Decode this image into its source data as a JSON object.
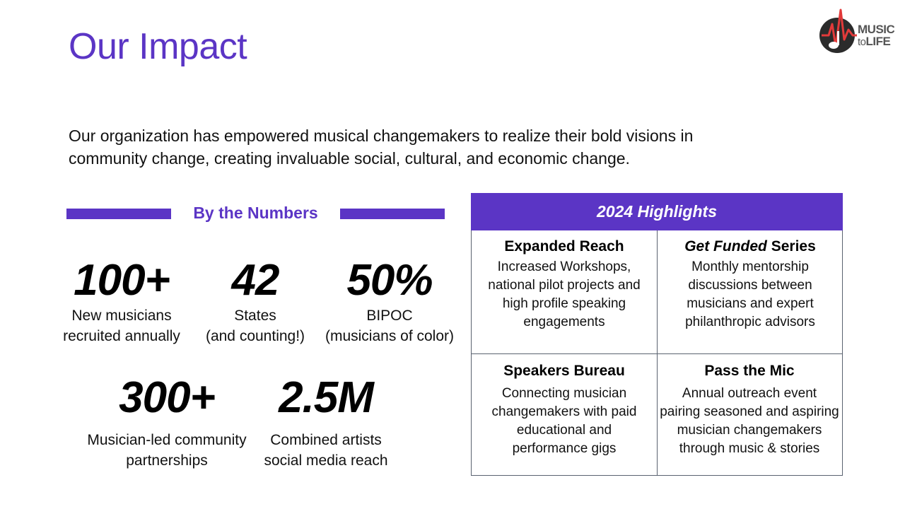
{
  "page": {
    "title": "Our Impact",
    "intro": "Our organization has empowered musical changemakers to realize their bold visions in community change, creating invaluable social, cultural, and economic change."
  },
  "logo": {
    "line1": "MUSIC",
    "line2a": "to",
    "line2b": "LIFE"
  },
  "numbers": {
    "heading": "By the Numbers",
    "stats": [
      {
        "value": "100+",
        "line1": "New musicians",
        "line2": "recruited annually"
      },
      {
        "value": "42",
        "line1": "States",
        "line2": "(and counting!)"
      },
      {
        "value": "50%",
        "line1": "BIPOC",
        "line2": "(musicians of color)"
      },
      {
        "value": "300+",
        "line1": "Musician-led community",
        "line2": "partnerships"
      },
      {
        "value": "2.5M",
        "line1": "Combined artists",
        "line2": "social media reach"
      }
    ]
  },
  "highlights": {
    "title": "2024 Highlights",
    "items": [
      {
        "title": "Expanded Reach",
        "lines": [
          "Increased Workshops,",
          "national pilot projects and",
          "high profile speaking",
          "engagements"
        ]
      },
      {
        "title_italic": "Get Funded",
        "title_rest": " Series",
        "lines": [
          "Monthly mentorship",
          "discussions between",
          "musicians and expert",
          "philanthropic advisors"
        ]
      },
      {
        "title": "Speakers Bureau",
        "lines": [
          "Connecting musician",
          "changemakers with paid",
          "educational and",
          "performance gigs"
        ]
      },
      {
        "title": "Pass the Mic",
        "lines": [
          "Annual outreach event",
          "pairing seasoned and aspiring",
          "musician changemakers",
          "through music & stories"
        ]
      }
    ]
  },
  "colors": {
    "accent": "#5b35c5",
    "logo_red": "#e23a3a",
    "logo_dark": "#2b2b2b"
  }
}
